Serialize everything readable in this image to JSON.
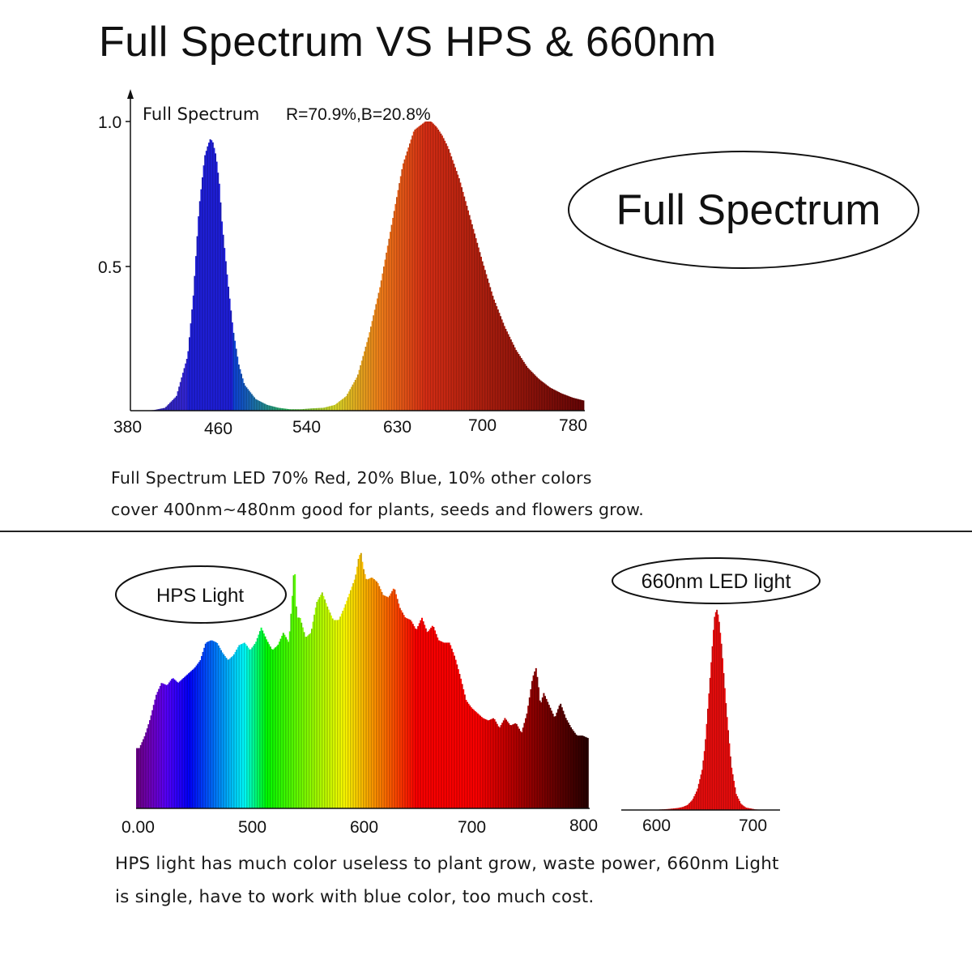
{
  "title": "Full Spectrum VS HPS & 660nm",
  "full_spectrum_caption": {
    "line1": "Full Spectrum LED 70% Red, 20% Blue, 10% other colors",
    "line2": "cover 400nm~480nm good for plants, seeds and flowers grow."
  },
  "bottom_caption": {
    "line1": "HPS light has much color useless to plant grow, waste power, 660nm Light",
    "line2": "is single, have to work with blue color, too much cost."
  },
  "chart_data": [
    {
      "type": "area",
      "name": "full_spectrum",
      "label": "Full Spectrum",
      "annotation_name": "Full Spectrum",
      "annotation_ratio": "R=70.9%,B=20.8%",
      "x_ticks": [
        "380",
        "460",
        "540",
        "630",
        "700",
        "780"
      ],
      "y_ticks": [
        "1.0",
        "0.5"
      ],
      "xlim": [
        380,
        780
      ],
      "ylim": [
        0,
        1.0
      ],
      "x": [
        380,
        390,
        400,
        410,
        420,
        430,
        435,
        440,
        445,
        448,
        450,
        452,
        455,
        458,
        460,
        465,
        470,
        475,
        480,
        490,
        500,
        510,
        520,
        530,
        540,
        550,
        560,
        570,
        580,
        590,
        600,
        610,
        620,
        630,
        640,
        645,
        650,
        655,
        660,
        670,
        680,
        690,
        700,
        710,
        720,
        730,
        740,
        750,
        760,
        770,
        780
      ],
      "y": [
        0,
        0,
        0.002,
        0.01,
        0.05,
        0.19,
        0.4,
        0.7,
        0.88,
        0.92,
        0.94,
        0.93,
        0.88,
        0.78,
        0.66,
        0.46,
        0.28,
        0.16,
        0.09,
        0.04,
        0.02,
        0.01,
        0.005,
        0.005,
        0.008,
        0.01,
        0.02,
        0.05,
        0.12,
        0.26,
        0.43,
        0.64,
        0.85,
        0.97,
        1.0,
        1.0,
        0.98,
        0.95,
        0.91,
        0.8,
        0.66,
        0.52,
        0.39,
        0.29,
        0.21,
        0.15,
        0.11,
        0.08,
        0.06,
        0.045,
        0.035
      ]
    },
    {
      "type": "area",
      "name": "hps",
      "label": "HPS Light",
      "x_ticks": [
        "0.00",
        "500",
        "600",
        "700",
        "800"
      ],
      "x_tick_values": [
        400,
        500,
        600,
        700,
        800
      ],
      "xlim": [
        400,
        800
      ],
      "ylim": [
        0,
        1.0
      ],
      "x": [
        395,
        400,
        405,
        410,
        415,
        420,
        425,
        430,
        435,
        440,
        445,
        450,
        455,
        460,
        465,
        470,
        475,
        480,
        485,
        490,
        495,
        500,
        505,
        510,
        515,
        520,
        525,
        530,
        533,
        535,
        537,
        540,
        545,
        550,
        555,
        560,
        565,
        570,
        575,
        580,
        585,
        590,
        593,
        595,
        597,
        600,
        605,
        610,
        615,
        620,
        625,
        630,
        635,
        640,
        645,
        650,
        655,
        660,
        665,
        670,
        675,
        680,
        685,
        690,
        695,
        700,
        705,
        710,
        715,
        720,
        725,
        730,
        735,
        740,
        745,
        750,
        753,
        755,
        757,
        760,
        765,
        770,
        775,
        780,
        785,
        790,
        795,
        800
      ],
      "y": [
        0.24,
        0.29,
        0.36,
        0.45,
        0.5,
        0.49,
        0.52,
        0.5,
        0.52,
        0.54,
        0.56,
        0.59,
        0.66,
        0.67,
        0.66,
        0.62,
        0.59,
        0.61,
        0.65,
        0.66,
        0.63,
        0.66,
        0.72,
        0.67,
        0.63,
        0.65,
        0.7,
        0.66,
        0.84,
        0.98,
        0.76,
        0.76,
        0.68,
        0.7,
        0.82,
        0.86,
        0.8,
        0.75,
        0.75,
        0.8,
        0.86,
        0.92,
        1.0,
        1.02,
        0.96,
        0.91,
        0.92,
        0.9,
        0.85,
        0.84,
        0.88,
        0.8,
        0.76,
        0.75,
        0.71,
        0.76,
        0.7,
        0.73,
        0.67,
        0.66,
        0.66,
        0.6,
        0.52,
        0.43,
        0.4,
        0.38,
        0.36,
        0.35,
        0.36,
        0.32,
        0.36,
        0.33,
        0.34,
        0.3,
        0.38,
        0.52,
        0.56,
        0.5,
        0.41,
        0.46,
        0.41,
        0.36,
        0.42,
        0.36,
        0.32,
        0.29,
        0.29,
        0.28
      ]
    },
    {
      "type": "area",
      "name": "led_660nm",
      "label": "660nm LED light",
      "x_ticks": [
        "600",
        "700"
      ],
      "xlim": [
        570,
        720
      ],
      "ylim": [
        0,
        1.0
      ],
      "x": [
        570,
        590,
        600,
        610,
        620,
        625,
        630,
        635,
        640,
        645,
        648,
        650,
        652,
        655,
        657,
        658,
        660,
        662,
        665,
        670,
        675,
        680,
        685,
        690,
        700,
        710,
        720
      ],
      "y": [
        0,
        0,
        0.002,
        0.005,
        0.01,
        0.015,
        0.025,
        0.05,
        0.1,
        0.2,
        0.32,
        0.45,
        0.58,
        0.78,
        0.92,
        0.97,
        1.0,
        0.96,
        0.82,
        0.5,
        0.22,
        0.08,
        0.03,
        0.012,
        0.003,
        0,
        0
      ]
    }
  ]
}
